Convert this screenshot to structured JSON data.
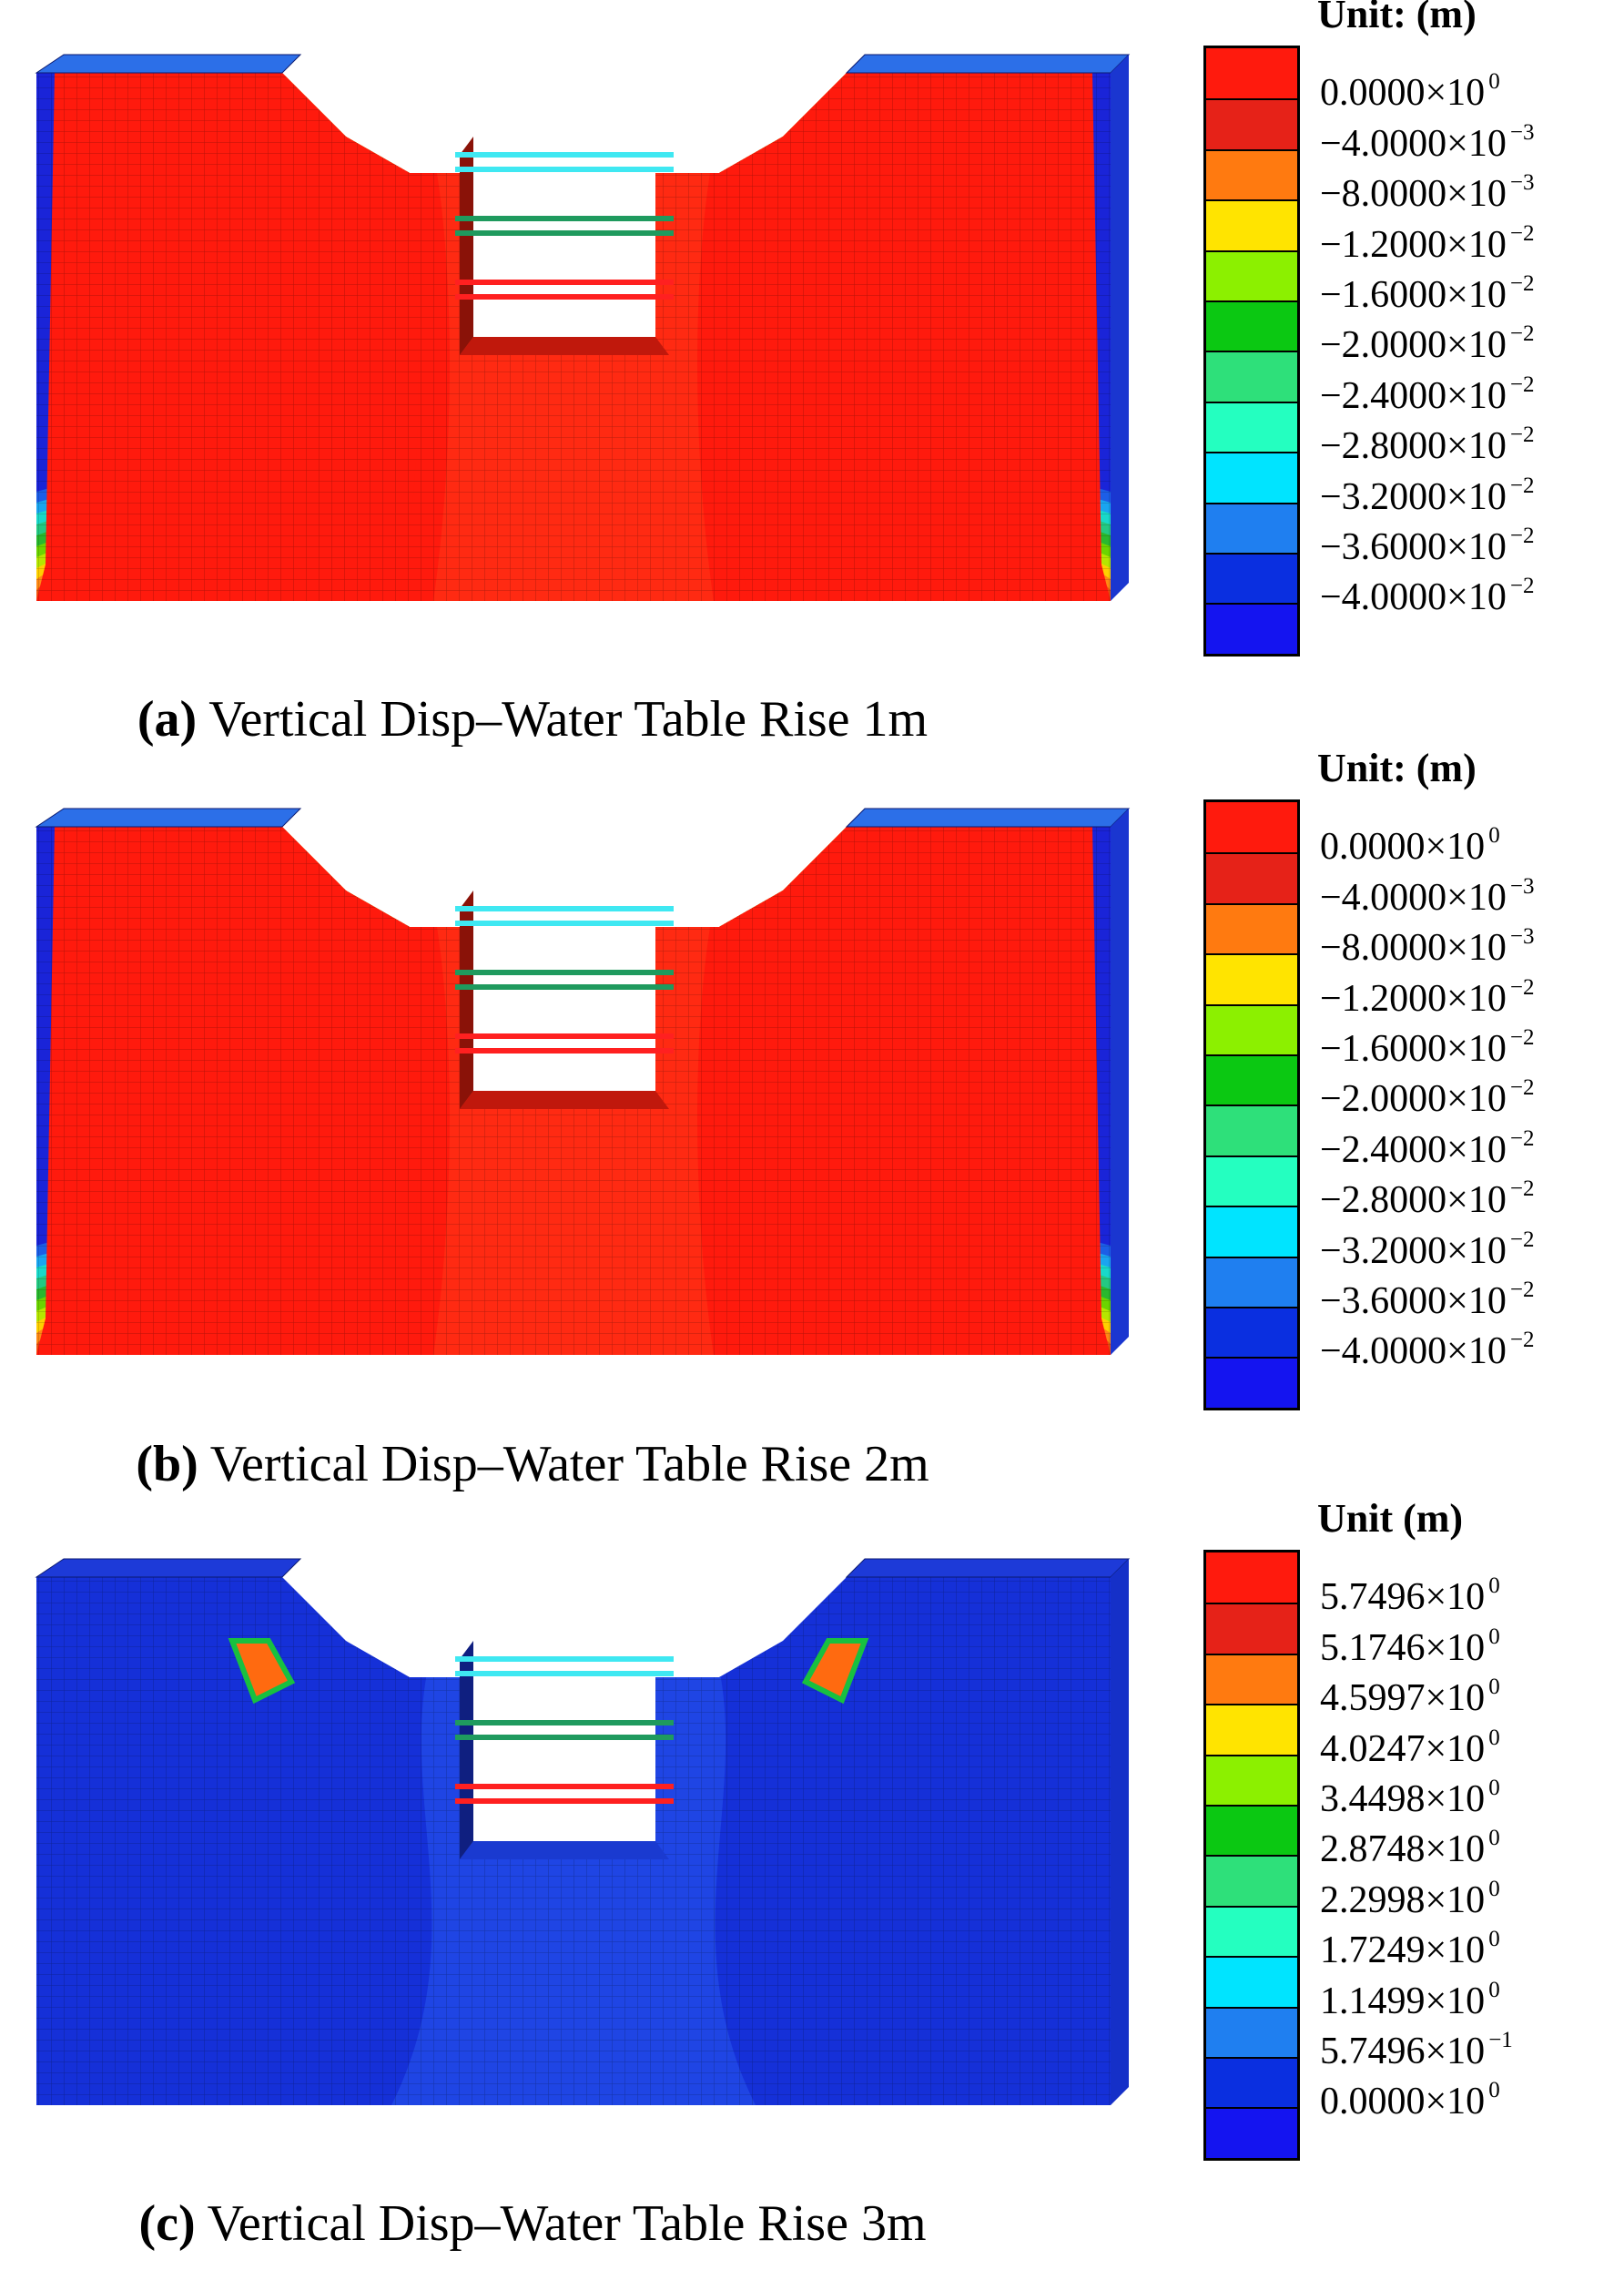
{
  "panels": [
    {
      "id": "a",
      "caption_tag": "(a)",
      "caption_text": "Vertical Disp–Water Table Rise 1m",
      "unit": "Unit: (m)",
      "legend_colors": [
        "#ff1a0d",
        "#e62218",
        "#ff7a10",
        "#ffe400",
        "#8cf000",
        "#0bc812",
        "#2ee07a",
        "#24ffc0",
        "#00e4ff",
        "#1f7ff0",
        "#0a2fe0",
        "#1414f0"
      ],
      "legend_labels": [
        {
          "mant": "0.0000×10",
          "exp": "0"
        },
        {
          "mant": "−4.0000×10",
          "exp": "−3"
        },
        {
          "mant": "−8.0000×10",
          "exp": "−3"
        },
        {
          "mant": "−1.2000×10",
          "exp": "−2"
        },
        {
          "mant": "−1.6000×10",
          "exp": "−2"
        },
        {
          "mant": "−2.0000×10",
          "exp": "−2"
        },
        {
          "mant": "−2.4000×10",
          "exp": "−2"
        },
        {
          "mant": "−2.8000×10",
          "exp": "−2"
        },
        {
          "mant": "−3.2000×10",
          "exp": "−2"
        },
        {
          "mant": "−3.6000×10",
          "exp": "−2"
        },
        {
          "mant": "−4.0000×10",
          "exp": "−2"
        }
      ]
    },
    {
      "id": "b",
      "caption_tag": "(b)",
      "caption_text": "Vertical Disp–Water Table Rise 2m",
      "unit": "Unit: (m)",
      "legend_colors": [
        "#ff1a0d",
        "#e62218",
        "#ff7a10",
        "#ffe400",
        "#8cf000",
        "#0bc812",
        "#2ee07a",
        "#24ffc0",
        "#00e4ff",
        "#1f7ff0",
        "#0a2fe0",
        "#1414f0"
      ],
      "legend_labels": [
        {
          "mant": "0.0000×10",
          "exp": "0"
        },
        {
          "mant": "−4.0000×10",
          "exp": "−3"
        },
        {
          "mant": "−8.0000×10",
          "exp": "−3"
        },
        {
          "mant": "−1.2000×10",
          "exp": "−2"
        },
        {
          "mant": "−1.6000×10",
          "exp": "−2"
        },
        {
          "mant": "−2.0000×10",
          "exp": "−2"
        },
        {
          "mant": "−2.4000×10",
          "exp": "−2"
        },
        {
          "mant": "−2.8000×10",
          "exp": "−2"
        },
        {
          "mant": "−3.2000×10",
          "exp": "−2"
        },
        {
          "mant": "−3.6000×10",
          "exp": "−2"
        },
        {
          "mant": "−4.0000×10",
          "exp": "−2"
        }
      ]
    },
    {
      "id": "c",
      "caption_tag": "(c)",
      "caption_text": "Vertical Disp–Water Table Rise 3m",
      "unit": "Unit (m)",
      "legend_colors": [
        "#ff1a0d",
        "#e62218",
        "#ff7a10",
        "#ffe400",
        "#8cf000",
        "#0bc812",
        "#2ee07a",
        "#24ffc0",
        "#00e4ff",
        "#1f7ff0",
        "#0a2fe0",
        "#1414f0"
      ],
      "legend_labels": [
        {
          "mant": "5.7496×10",
          "exp": "0"
        },
        {
          "mant": "5.1746×10",
          "exp": "0"
        },
        {
          "mant": "4.5997×10",
          "exp": "0"
        },
        {
          "mant": "4.0247×10",
          "exp": "0"
        },
        {
          "mant": "3.4498×10",
          "exp": "0"
        },
        {
          "mant": "2.8748×10",
          "exp": "0"
        },
        {
          "mant": "2.2998×10",
          "exp": "0"
        },
        {
          "mant": "1.7249×10",
          "exp": "0"
        },
        {
          "mant": "1.1499×10",
          "exp": "0"
        },
        {
          "mant": "5.7496×10",
          "exp": "−1"
        },
        {
          "mant": "0.0000×10",
          "exp": "0"
        }
      ]
    }
  ],
  "strut_colors": [
    "#3fe8f2",
    "#1f9a5e",
    "#ff2020"
  ],
  "contour_colors_ab": [
    "#ff1a0d",
    "#f2540f",
    "#ff8a14",
    "#ffd000",
    "#b6e600",
    "#6cd400",
    "#2ab82e",
    "#24c982",
    "#19d9c9",
    "#1aa5f0",
    "#1c5ee6",
    "#1a24d8"
  ],
  "contour_colors_c": [
    "#1530d8",
    "#1f45e4",
    "#2b6cf0"
  ]
}
